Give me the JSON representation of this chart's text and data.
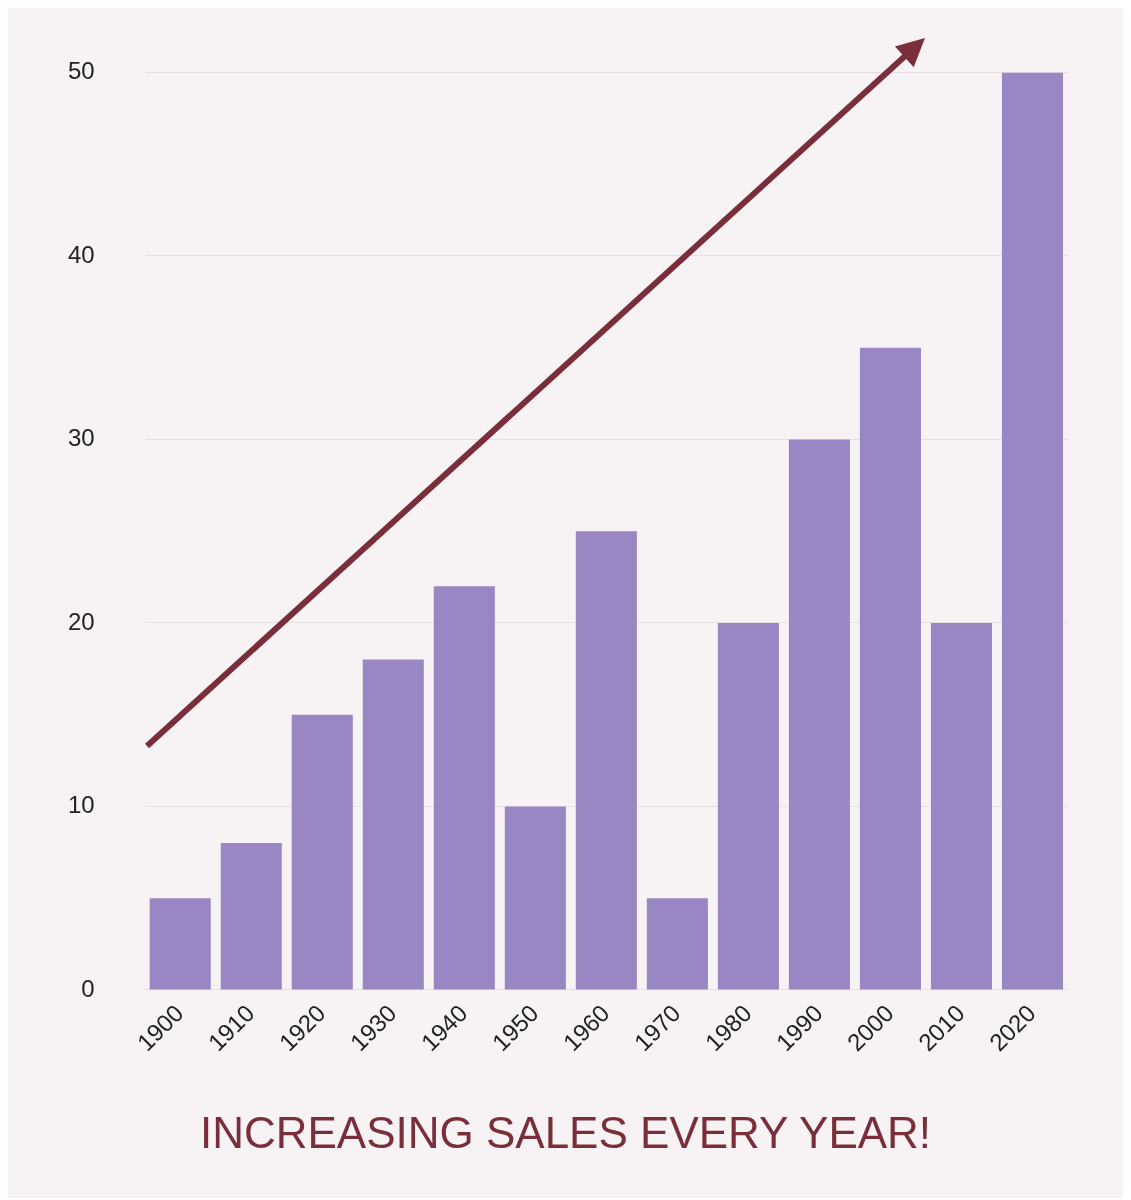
{
  "chart_data": {
    "type": "bar",
    "title": "INCREASING SALES EVERY YEAR!",
    "categories": [
      "1900",
      "1910",
      "1920",
      "1930",
      "1940",
      "1950",
      "1960",
      "1970",
      "1980",
      "1990",
      "2000",
      "2010",
      "2020"
    ],
    "values": [
      5,
      8,
      15,
      18,
      22,
      10,
      25,
      5,
      20,
      30,
      35,
      20,
      50
    ],
    "color": "#9b86c4",
    "ylim": [
      0,
      50
    ],
    "yticks": [
      0,
      10,
      20,
      30,
      40,
      50
    ],
    "grid": "y"
  }
}
